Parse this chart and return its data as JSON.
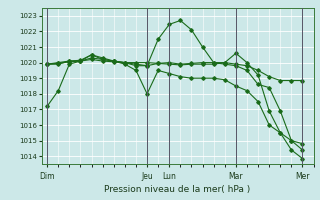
{
  "xlabel": "Pression niveau de la mer( hPa )",
  "background_color": "#cce8e8",
  "line_color": "#1a6b1a",
  "grid_color": "#ffffff",
  "yticks": [
    1014,
    1015,
    1016,
    1017,
    1018,
    1019,
    1020,
    1021,
    1022,
    1023
  ],
  "ylim": [
    1013.5,
    1023.5
  ],
  "day_labels": [
    "Dim",
    "Jeu",
    "Lun",
    "Mar",
    "Mer"
  ],
  "day_positions": [
    0,
    9,
    11,
    17,
    23
  ],
  "vline_positions": [
    0,
    9,
    11,
    17,
    23
  ],
  "xlim": [
    -0.5,
    24
  ],
  "series": [
    {
      "x": [
        0,
        1,
        2,
        3,
        4,
        5,
        6,
        7,
        8,
        9,
        10,
        11,
        12,
        13,
        14,
        15,
        16,
        17,
        18,
        19,
        20,
        21,
        22,
        23
      ],
      "y": [
        1017.2,
        1018.2,
        1019.9,
        1020.1,
        1020.5,
        1020.2,
        1020.1,
        1020.0,
        1019.8,
        1019.8,
        1021.5,
        1022.45,
        1022.7,
        1022.1,
        1021.0,
        1020.0,
        1019.9,
        1019.8,
        1019.5,
        1018.6,
        1018.4,
        1016.9,
        1015.0,
        1014.8
      ]
    },
    {
      "x": [
        0,
        1,
        2,
        3,
        4,
        5,
        6,
        7,
        8,
        9,
        10,
        11,
        12,
        13,
        14,
        15,
        16,
        17,
        18,
        19,
        20,
        21,
        22,
        23
      ],
      "y": [
        1019.9,
        1019.9,
        1020.1,
        1020.1,
        1020.2,
        1020.1,
        1020.05,
        1020.0,
        1020.0,
        1020.0,
        1019.95,
        1020.0,
        1019.9,
        1019.95,
        1020.0,
        1020.0,
        1020.0,
        1019.9,
        1019.8,
        1019.5,
        1019.1,
        1018.85,
        1018.85,
        1018.85
      ]
    },
    {
      "x": [
        0,
        1,
        2,
        3,
        4,
        5,
        6,
        7,
        8,
        9,
        10,
        11,
        12,
        13,
        14,
        15,
        16,
        17,
        18,
        19,
        20,
        21,
        22,
        23
      ],
      "y": [
        1019.9,
        1020.0,
        1020.1,
        1020.15,
        1020.5,
        1020.3,
        1020.1,
        1019.9,
        1019.5,
        1018.0,
        1019.5,
        1019.3,
        1019.1,
        1019.0,
        1019.0,
        1019.0,
        1018.9,
        1018.5,
        1018.2,
        1017.5,
        1016.0,
        1015.5,
        1015.0,
        1014.4
      ]
    },
    {
      "x": [
        0,
        1,
        2,
        3,
        4,
        5,
        6,
        7,
        8,
        9,
        10,
        11,
        12,
        13,
        14,
        15,
        16,
        17,
        18,
        19,
        20,
        21,
        22,
        23
      ],
      "y": [
        1019.9,
        1019.95,
        1020.05,
        1020.1,
        1020.3,
        1020.2,
        1020.1,
        1020.0,
        1019.9,
        1019.8,
        1019.95,
        1019.9,
        1019.85,
        1019.9,
        1019.9,
        1019.9,
        1020.0,
        1020.6,
        1020.0,
        1019.2,
        1016.9,
        1015.5,
        1014.4,
        1013.85
      ]
    }
  ]
}
